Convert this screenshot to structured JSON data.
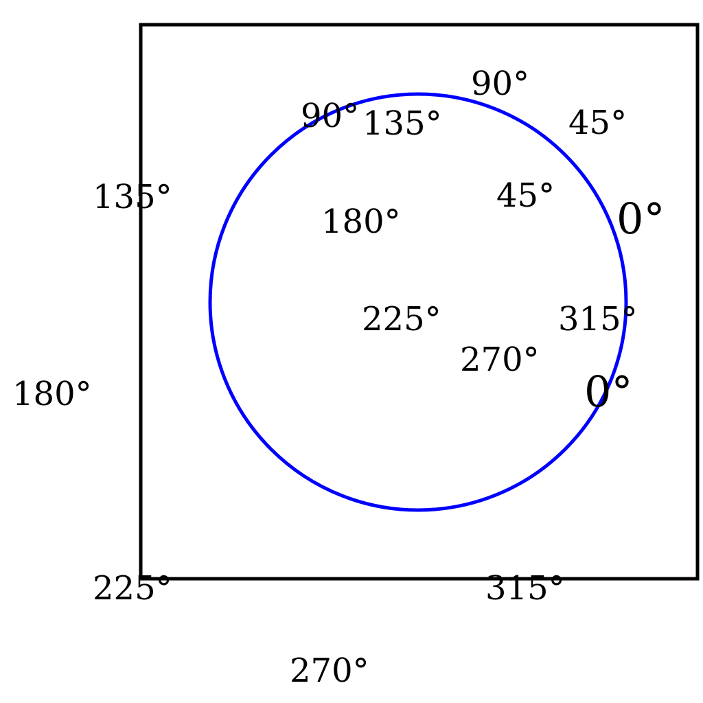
{
  "colors": {
    "frame": "#000000",
    "circle": "#0000ff",
    "text": "#000000",
    "background": "#ffffff"
  },
  "outer_labels": {
    "deg_0": "0°",
    "deg_45": "45°",
    "deg_90": "90°",
    "deg_135": "135°",
    "deg_180": "180°",
    "deg_225": "225°",
    "deg_270": "270°",
    "deg_315": "315°"
  },
  "inner_labels": {
    "deg_0": "0°",
    "deg_45": "45°",
    "deg_90": "90°",
    "deg_135": "135°",
    "deg_180": "180°",
    "deg_225": "225°",
    "deg_270": "270°",
    "deg_315": "315°"
  }
}
